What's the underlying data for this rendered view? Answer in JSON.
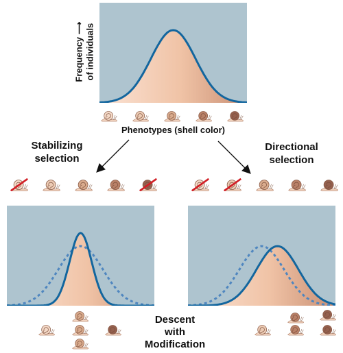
{
  "labels": {
    "y_axis_line1": "Frequency",
    "y_axis_line2": "of individuals",
    "x_axis": "Phenotypes (shell color)",
    "stabilizing_line1": "Stabilizing",
    "stabilizing_line2": "selection",
    "directional_line1": "Directional",
    "directional_line2": "selection",
    "descent_line1": "Descent",
    "descent_line2": "with",
    "descent_line3": "Modification"
  },
  "colors": {
    "panel_bg": "#aec4cf",
    "curve_stroke": "#13669e",
    "dotted_stroke": "#4f86bf",
    "cross_red": "#d21f26"
  },
  "icons": {
    "snail": "snail-icon",
    "cross": "red-slash-icon",
    "arrow": "arrow-icon"
  },
  "shell_colors": [
    "#f4d9c7",
    "#eccbb4",
    "#d9ab8d",
    "#b98168",
    "#94604e"
  ],
  "chart_data": [
    {
      "type": "area",
      "panel": "original",
      "x_categories": [
        "phenotype-1",
        "phenotype-2",
        "phenotype-3",
        "phenotype-4",
        "phenotype-5"
      ],
      "series": [
        {
          "distribution": "normal",
          "mean": 3,
          "sd": 0.85,
          "relative_peak": 1.0,
          "line": "solid"
        }
      ]
    },
    {
      "type": "area",
      "panel": "stabilizing",
      "series": [
        {
          "distribution": "normal",
          "mean": 3,
          "sd": 0.42,
          "relative_peak": 1.0,
          "line": "solid"
        },
        {
          "distribution": "normal",
          "mean": 3,
          "sd": 0.85,
          "relative_peak": 0.82,
          "line": "dotted"
        }
      ],
      "removed_phenotypes": [
        1,
        5
      ]
    },
    {
      "type": "area",
      "panel": "directional",
      "series": [
        {
          "distribution": "normal",
          "mean": 3.6,
          "sd": 0.8,
          "relative_peak": 0.82,
          "line": "solid"
        },
        {
          "distribution": "normal",
          "mean": 3,
          "sd": 0.85,
          "relative_peak": 0.82,
          "line": "dotted"
        }
      ],
      "removed_phenotypes": [
        1,
        2
      ]
    }
  ]
}
